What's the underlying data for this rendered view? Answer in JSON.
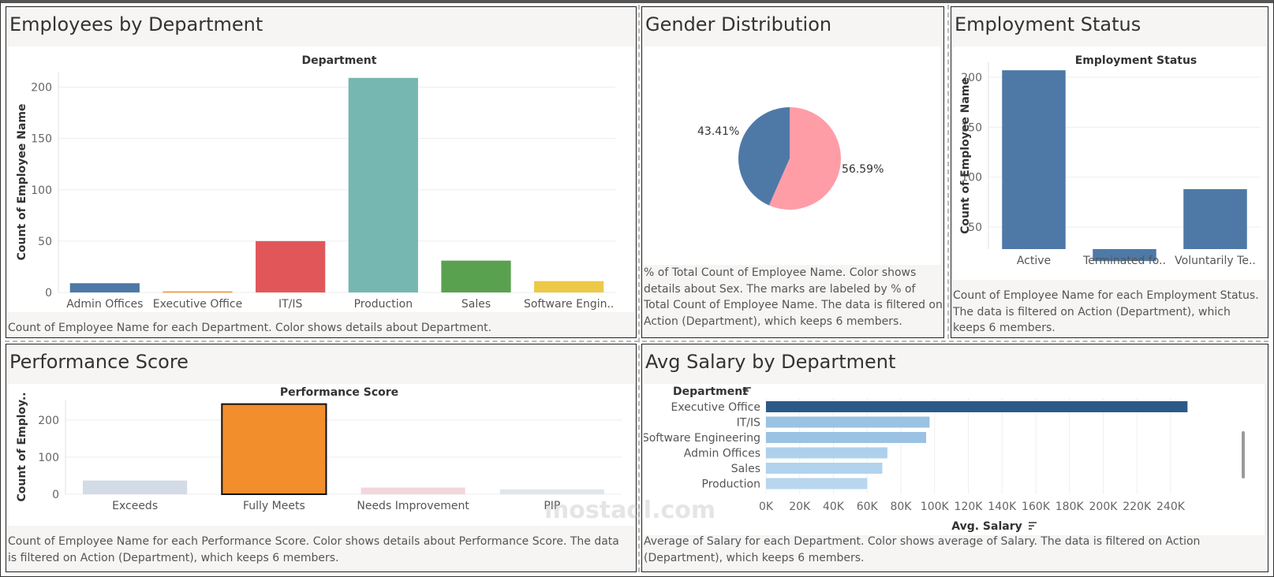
{
  "panels": {
    "dept": {
      "title": "Employees by Department",
      "caption": "Count of Employee Name for each Department.  Color shows details about Department."
    },
    "gender": {
      "title": "Gender Distribution",
      "caption": "% of Total Count of Employee Name.  Color shows details about Sex.  The marks are labeled by % of Total Count of Employee Name. The data is filtered on Action (Department), which keeps 6 members."
    },
    "status": {
      "title": "Employment Status",
      "caption": "Count of Employee Name for each Employment Status.  The data is filtered on Action (Department), which keeps 6 members."
    },
    "perf": {
      "title": "Performance Score",
      "caption": "Count of Employee Name for each Performance Score.  Color shows details about Performance Score. The data is filtered on Action (Department), which keeps 6 members."
    },
    "salary": {
      "title": "Avg Salary by Department",
      "caption": "Average of Salary for each Department.  Color shows average of Salary. The data is filtered on Action (Department), which keeps 6 members."
    }
  },
  "watermark": "mostaql.com",
  "chart_data": [
    {
      "id": "dept",
      "type": "bar",
      "title": "Department",
      "xlabel": "",
      "ylabel": "Count of Employee Name",
      "categories": [
        "Admin Offices",
        "Executive Office",
        "IT/IS",
        "Production",
        "Sales",
        "Software Engin.."
      ],
      "values": [
        9,
        1,
        50,
        209,
        31,
        11
      ],
      "colors": [
        "#4e79a7",
        "#f28e2b",
        "#e15759",
        "#76b7b2",
        "#59a14f",
        "#edc948"
      ],
      "yticks": [
        0,
        50,
        100,
        150,
        200
      ],
      "ylim": [
        0,
        215
      ],
      "grid": true
    },
    {
      "id": "gender",
      "type": "pie",
      "labels": [
        "43.41%",
        "56.59%"
      ],
      "values": [
        43.41,
        56.59
      ],
      "colors": [
        "#4e79a7",
        "#ff9da7"
      ]
    },
    {
      "id": "status",
      "type": "bar",
      "title": "Employment Status",
      "ylabel": "Count of Employee Name",
      "categories": [
        "Active",
        "Terminated fo..",
        "Voluntarily Te.."
      ],
      "values": [
        207,
        16,
        88
      ],
      "colors": [
        "#4e79a7",
        "#4e79a7",
        "#4e79a7"
      ],
      "yticks": [
        50,
        100,
        150,
        200
      ],
      "ylim": [
        28,
        215
      ],
      "grid": true
    },
    {
      "id": "perf",
      "type": "bar",
      "title": "Performance Score",
      "ylabel": "Count of Employ..",
      "categories": [
        "Exceeds",
        "Fully Meets",
        "Needs Improvement",
        "PIP"
      ],
      "values": [
        37,
        243,
        18,
        13
      ],
      "colors": [
        "#d3dbe6",
        "#f28e2b",
        "#f3d7dd",
        "#dfe7ea"
      ],
      "highlight": "Fully Meets",
      "yticks": [
        0,
        100,
        200
      ],
      "ylim": [
        0,
        255
      ],
      "grid": true
    },
    {
      "id": "salary",
      "type": "bar",
      "orientation": "horizontal",
      "rows_header": "Department",
      "categories": [
        "Executive Office",
        "IT/IS",
        "Software Engineering",
        "Admin Offices",
        "Sales",
        "Production"
      ],
      "values": [
        250000,
        97000,
        95000,
        72000,
        69000,
        60000
      ],
      "colors": [
        "#2c5987",
        "#9ac2e3",
        "#9ac2e3",
        "#aed0ec",
        "#b1d3ee",
        "#b8d6ef"
      ],
      "xlabel": "Avg. Salary",
      "xticks": [
        "0K",
        "20K",
        "40K",
        "60K",
        "80K",
        "100K",
        "120K",
        "140K",
        "160K",
        "180K",
        "200K",
        "220K",
        "240K"
      ],
      "xlim": [
        0,
        262000
      ],
      "grid": true
    }
  ]
}
